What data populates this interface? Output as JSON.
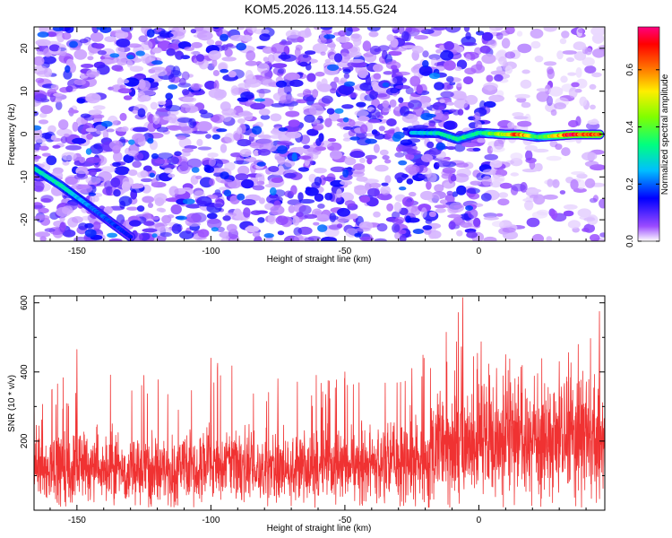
{
  "title": "KOM5.2026.113.14.55.G24",
  "chart_data": [
    {
      "type": "heatmap",
      "title": "KOM5.2026.113.14.55.G24",
      "xlabel": "Height of straight line (km)",
      "ylabel": "Frequency (Hz)",
      "xlim": [
        -166,
        47
      ],
      "ylim": [
        -25,
        25
      ],
      "x_ticks": [
        "-150",
        "-100",
        "-50",
        "0"
      ],
      "x_tick_values": [
        -150,
        -100,
        -50,
        0
      ],
      "y_ticks": [
        "-20",
        "-10",
        "0",
        "10",
        "20"
      ],
      "y_tick_values": [
        -20,
        -10,
        0,
        10,
        20
      ],
      "colorbar": {
        "label": "Normalized spectral amplitude",
        "range": [
          0.0,
          0.75
        ],
        "ticks": [
          "0.0",
          "0.2",
          "0.4",
          "0.6"
        ],
        "tick_values": [
          0.0,
          0.2,
          0.4,
          0.6
        ]
      },
      "ridge": {
        "description": "strong narrow signal near 0 Hz from about -25 km to +47 km, amplitude increasing with height",
        "points": [
          {
            "x": -25,
            "y": 0.3,
            "value": 0.25
          },
          {
            "x": -15,
            "y": 0.2,
            "value": 0.3
          },
          {
            "x": -8,
            "y": -1.2,
            "value": 0.35
          },
          {
            "x": 0,
            "y": 0.3,
            "value": 0.33
          },
          {
            "x": 10,
            "y": -0.1,
            "value": 0.5
          },
          {
            "x": 15,
            "y": -0.1,
            "value": 0.68
          },
          {
            "x": 22,
            "y": -0.7,
            "value": 0.35
          },
          {
            "x": 35,
            "y": -0.1,
            "value": 0.72
          },
          {
            "x": 45,
            "y": -0.1,
            "value": 0.6
          }
        ]
      },
      "streak": {
        "description": "diagonal feature at the low-height edge",
        "points": [
          {
            "x": -166,
            "y": -8,
            "value": 0.3
          },
          {
            "x": -156,
            "y": -12,
            "value": 0.32
          },
          {
            "x": -145,
            "y": -17,
            "value": 0.22
          },
          {
            "x": -130,
            "y": -24,
            "value": 0.15
          }
        ]
      }
    },
    {
      "type": "line",
      "xlabel": "Height of straight line (km)",
      "ylabel": "SNR (10 * v/v)",
      "xlim": [
        -166,
        47
      ],
      "ylim": [
        0,
        620
      ],
      "x_ticks": [
        "-150",
        "-100",
        "-50",
        "0"
      ],
      "x_tick_values": [
        -150,
        -100,
        -50,
        0
      ],
      "y_ticks": [
        "200",
        "400",
        "600"
      ],
      "y_tick_values": [
        200,
        400,
        600
      ],
      "series": [
        {
          "name": "SNR",
          "color": "#f03232",
          "description": "noisy trace, mean rising from about 120 at left to about 200 at right",
          "envelope": [
            {
              "x": -166,
              "mean": 120,
              "max": 350
            },
            {
              "x": -150,
              "mean": 125,
              "max": 465
            },
            {
              "x": -125,
              "mean": 120,
              "max": 390
            },
            {
              "x": -100,
              "mean": 125,
              "max": 440
            },
            {
              "x": -75,
              "mean": 120,
              "max": 380
            },
            {
              "x": -50,
              "mean": 125,
              "max": 400
            },
            {
              "x": -25,
              "mean": 145,
              "max": 410
            },
            {
              "x": -6,
              "mean": 185,
              "max": 615
            },
            {
              "x": 10,
              "mean": 200,
              "max": 450
            },
            {
              "x": 30,
              "mean": 205,
              "max": 430
            },
            {
              "x": 45,
              "mean": 210,
              "max": 575
            }
          ]
        }
      ]
    }
  ]
}
